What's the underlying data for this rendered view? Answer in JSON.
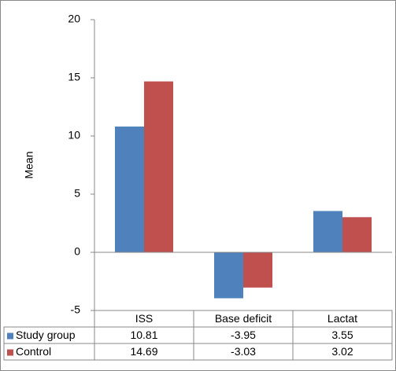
{
  "chart_data": {
    "type": "bar",
    "y_label": "Mean",
    "categories": [
      "ISS",
      "Base deficit",
      "Lactat"
    ],
    "series": [
      {
        "name": "Study group",
        "color": "#4f81bd",
        "values": [
          10.81,
          -3.95,
          3.55
        ]
      },
      {
        "name": "Control",
        "color": "#c0504d",
        "values": [
          14.69,
          -3.03,
          3.02
        ]
      }
    ],
    "ylim": [
      -5,
      20
    ],
    "yticks": [
      -5,
      0,
      5,
      10,
      15,
      20
    ],
    "grid": false,
    "data_table": true
  }
}
